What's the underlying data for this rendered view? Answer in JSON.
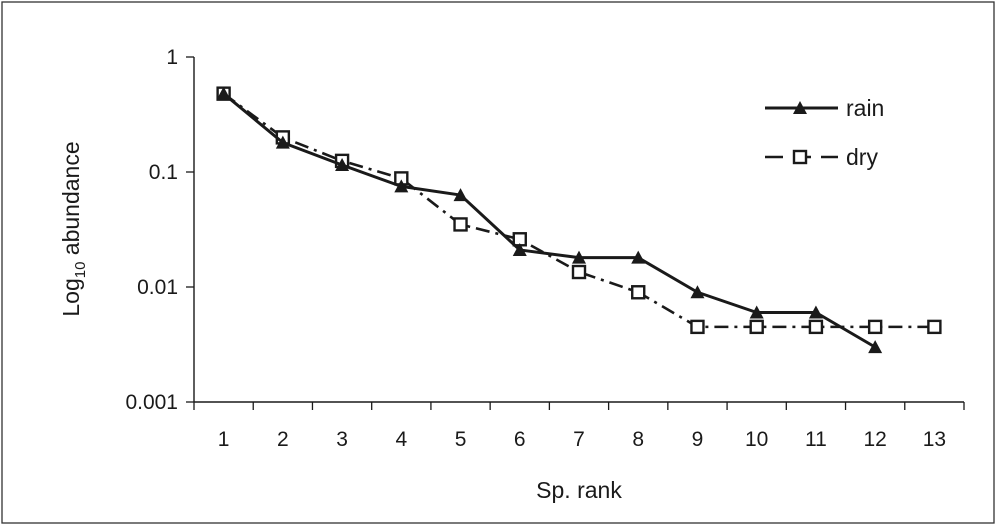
{
  "chart_data": {
    "type": "line",
    "title": "",
    "xlabel": "Sp. rank",
    "ylabel_prefix": "Log",
    "ylabel_sub": "10",
    "ylabel_suffix": " abundance",
    "yscale": "log",
    "ylim": [
      0.001,
      1
    ],
    "xlim": [
      0.5,
      13.5
    ],
    "x_ticks": [
      "1",
      "2",
      "3",
      "4",
      "5",
      "6",
      "7",
      "8",
      "9",
      "10",
      "11",
      "12",
      "13"
    ],
    "y_ticks": [
      "0.001",
      "0.01",
      "0.1",
      "1"
    ],
    "grid": false,
    "legend_position": "top-right",
    "series": [
      {
        "name": "rain",
        "x": [
          1,
          2,
          3,
          4,
          5,
          6,
          7,
          8,
          9,
          10,
          11,
          12
        ],
        "values": [
          0.48,
          0.18,
          0.115,
          0.075,
          0.063,
          0.021,
          0.018,
          0.018,
          0.009,
          0.006,
          0.006,
          0.003
        ],
        "color": "#1a1a1a",
        "line_style": "solid",
        "marker": "filled-triangle"
      },
      {
        "name": "dry",
        "x": [
          1,
          2,
          3,
          4,
          5,
          6,
          7,
          8,
          9,
          10,
          11,
          12,
          13
        ],
        "values": [
          0.48,
          0.2,
          0.125,
          0.088,
          0.035,
          0.026,
          0.0135,
          0.009,
          0.0045,
          0.0045,
          0.0045,
          0.0045,
          0.0045
        ],
        "color": "#1a1a1a",
        "line_style": "dash-dot",
        "marker": "open-square"
      }
    ]
  }
}
